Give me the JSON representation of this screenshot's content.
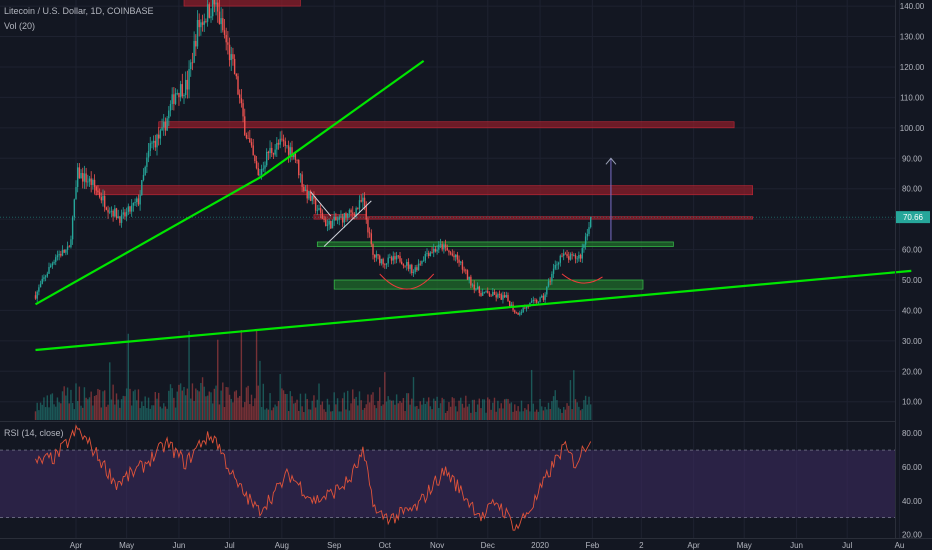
{
  "header": {
    "title": "Litecoin / U.S. Dollar, 1D, COINBASE",
    "volume_label": "Vol (20)",
    "rsi_label": "RSI (14, close)"
  },
  "last_price_label": "70.66",
  "colors": {
    "background": "#131722",
    "up": "#26a69a",
    "down": "#ef5350",
    "trendline": "#00e600",
    "rsi_line": "#e0533a",
    "rsi_band": "#3a2a5e",
    "resistance_zone": "#8b1e2a",
    "support_zone": "#1f6b2a",
    "projection_arrow": "#7b6fc9"
  },
  "chart_data": {
    "type": "candlestick",
    "x_tick_labels": [
      "Apr",
      "May",
      "Jun",
      "Jul",
      "Aug",
      "Sep",
      "Oct",
      "Nov",
      "Dec",
      "2020",
      "Feb",
      "2",
      "Apr",
      "May",
      "Jun",
      "Jul",
      "Au"
    ],
    "y_tick_labels": [
      "140.00",
      "130.00",
      "120.00",
      "110.00",
      "100.00",
      "90.00",
      "80.00",
      "70.00",
      "60.00",
      "50.00",
      "40.00",
      "30.00",
      "20.00",
      "10.00"
    ],
    "ylim": [
      4,
      142
    ],
    "rsi_tick_labels": [
      "80.00",
      "60.00",
      "40.00",
      "20.00"
    ],
    "rsi_ylim": [
      18,
      86
    ],
    "rsi_bands": [
      30,
      70
    ],
    "price_path": [
      [
        "2019-03-08",
        45
      ],
      [
        "2019-03-20",
        58
      ],
      [
        "2019-03-28",
        60
      ],
      [
        "2019-04-02",
        85
      ],
      [
        "2019-04-10",
        82
      ],
      [
        "2019-04-20",
        74
      ],
      [
        "2019-04-28",
        70
      ],
      [
        "2019-05-08",
        76
      ],
      [
        "2019-05-15",
        94
      ],
      [
        "2019-05-22",
        98
      ],
      [
        "2019-05-30",
        112
      ],
      [
        "2019-06-06",
        114
      ],
      [
        "2019-06-12",
        133
      ],
      [
        "2019-06-18",
        138
      ],
      [
        "2019-06-22",
        141
      ],
      [
        "2019-06-28",
        130
      ],
      [
        "2019-07-04",
        118
      ],
      [
        "2019-07-10",
        100
      ],
      [
        "2019-07-18",
        84
      ],
      [
        "2019-07-24",
        92
      ],
      [
        "2019-08-01",
        95
      ],
      [
        "2019-08-08",
        92
      ],
      [
        "2019-08-14",
        80
      ],
      [
        "2019-08-20",
        75
      ],
      [
        "2019-08-28",
        68
      ],
      [
        "2019-09-04",
        70
      ],
      [
        "2019-09-12",
        72
      ],
      [
        "2019-09-18",
        76
      ],
      [
        "2019-09-24",
        58
      ],
      [
        "2019-10-01",
        56
      ],
      [
        "2019-10-10",
        57
      ],
      [
        "2019-10-18",
        53
      ],
      [
        "2019-10-26",
        59
      ],
      [
        "2019-11-04",
        61
      ],
      [
        "2019-11-14",
        56
      ],
      [
        "2019-11-20",
        50
      ],
      [
        "2019-11-26",
        46
      ],
      [
        "2019-12-04",
        45
      ],
      [
        "2019-12-12",
        44
      ],
      [
        "2019-12-18",
        39
      ],
      [
        "2019-12-26",
        42
      ],
      [
        "2020-01-03",
        44
      ],
      [
        "2020-01-08",
        52
      ],
      [
        "2020-01-13",
        58
      ],
      [
        "2020-01-20",
        57
      ],
      [
        "2020-01-25",
        58
      ],
      [
        "2020-01-31",
        70.66
      ]
    ],
    "volume_path": [
      [
        "2019-03-08",
        7
      ],
      [
        "2019-04-02",
        14
      ],
      [
        "2019-05-15",
        11
      ],
      [
        "2019-06-18",
        16
      ],
      [
        "2019-07-18",
        13
      ],
      [
        "2019-08-20",
        9
      ],
      [
        "2019-09-24",
        12
      ],
      [
        "2019-10-26",
        8
      ],
      [
        "2019-11-26",
        9
      ],
      [
        "2019-12-18",
        7
      ],
      [
        "2020-01-13",
        8
      ],
      [
        "2020-01-31",
        9
      ]
    ],
    "rsi_path": [
      [
        "2019-03-08",
        62
      ],
      [
        "2019-03-20",
        66
      ],
      [
        "2019-04-02",
        82
      ],
      [
        "2019-04-10",
        72
      ],
      [
        "2019-04-25",
        50
      ],
      [
        "2019-05-10",
        60
      ],
      [
        "2019-05-25",
        74
      ],
      [
        "2019-06-05",
        62
      ],
      [
        "2019-06-15",
        76
      ],
      [
        "2019-06-22",
        78
      ],
      [
        "2019-07-05",
        50
      ],
      [
        "2019-07-18",
        34
      ],
      [
        "2019-07-28",
        45
      ],
      [
        "2019-08-05",
        56
      ],
      [
        "2019-08-20",
        40
      ],
      [
        "2019-08-30",
        44
      ],
      [
        "2019-09-10",
        52
      ],
      [
        "2019-09-18",
        68
      ],
      [
        "2019-09-26",
        32
      ],
      [
        "2019-10-06",
        30
      ],
      [
        "2019-10-20",
        36
      ],
      [
        "2019-10-30",
        50
      ],
      [
        "2019-11-06",
        58
      ],
      [
        "2019-11-18",
        42
      ],
      [
        "2019-11-28",
        30
      ],
      [
        "2019-12-06",
        40
      ],
      [
        "2019-12-18",
        24
      ],
      [
        "2019-12-28",
        38
      ],
      [
        "2020-01-08",
        60
      ],
      [
        "2020-01-15",
        72
      ],
      [
        "2020-01-22",
        62
      ],
      [
        "2020-01-31",
        78
      ]
    ],
    "trendlines": [
      {
        "from": [
          "2019-03-08",
          42
        ],
        "to": [
          "2019-07-20",
          84
        ]
      },
      {
        "from": [
          "2019-07-20",
          84
        ],
        "to": [
          "2019-10-24",
          122
        ]
      },
      {
        "from": [
          "2019-03-08",
          27
        ],
        "to": [
          "2020-08-08",
          53
        ]
      },
      {
        "from": [
          "2019-08-18",
          79
        ],
        "to": [
          "2019-08-30",
          71
        ]
      },
      {
        "from": [
          "2019-08-26",
          61
        ],
        "to": [
          "2019-09-23",
          76
        ]
      }
    ],
    "resistance_zones": [
      {
        "from": "2019-06-04",
        "to": "2019-08-12",
        "y0": 140,
        "y1": 143
      },
      {
        "from": "2019-05-20",
        "to": "2020-04-25",
        "y0": 100,
        "y1": 102
      },
      {
        "from": "2019-04-12",
        "to": "2020-05-06",
        "y0": 78,
        "y1": 81
      },
      {
        "from": "2019-08-20",
        "to": "2019-09-20",
        "y0": 70,
        "y1": 71.5
      },
      {
        "from": "2019-09-20",
        "to": "2020-05-06",
        "y0": 70,
        "y1": 70.8
      }
    ],
    "support_zones": [
      {
        "from": "2019-08-22",
        "to": "2020-03-20",
        "y0": 61,
        "y1": 62.5
      },
      {
        "from": "2019-09-01",
        "to": "2020-03-02",
        "y0": 47,
        "y1": 50
      }
    ],
    "arcs": [
      {
        "from": [
          "2019-09-28",
          52
        ],
        "mid": [
          "2019-10-14",
          47
        ],
        "to": [
          "2019-10-30",
          52
        ]
      },
      {
        "from": [
          "2020-01-14",
          52
        ],
        "mid": [
          "2020-01-26",
          49
        ],
        "to": [
          "2020-02-07",
          51
        ]
      }
    ],
    "projection_arrow": {
      "x": "2020-02-12",
      "from": 63,
      "to": 90
    }
  }
}
